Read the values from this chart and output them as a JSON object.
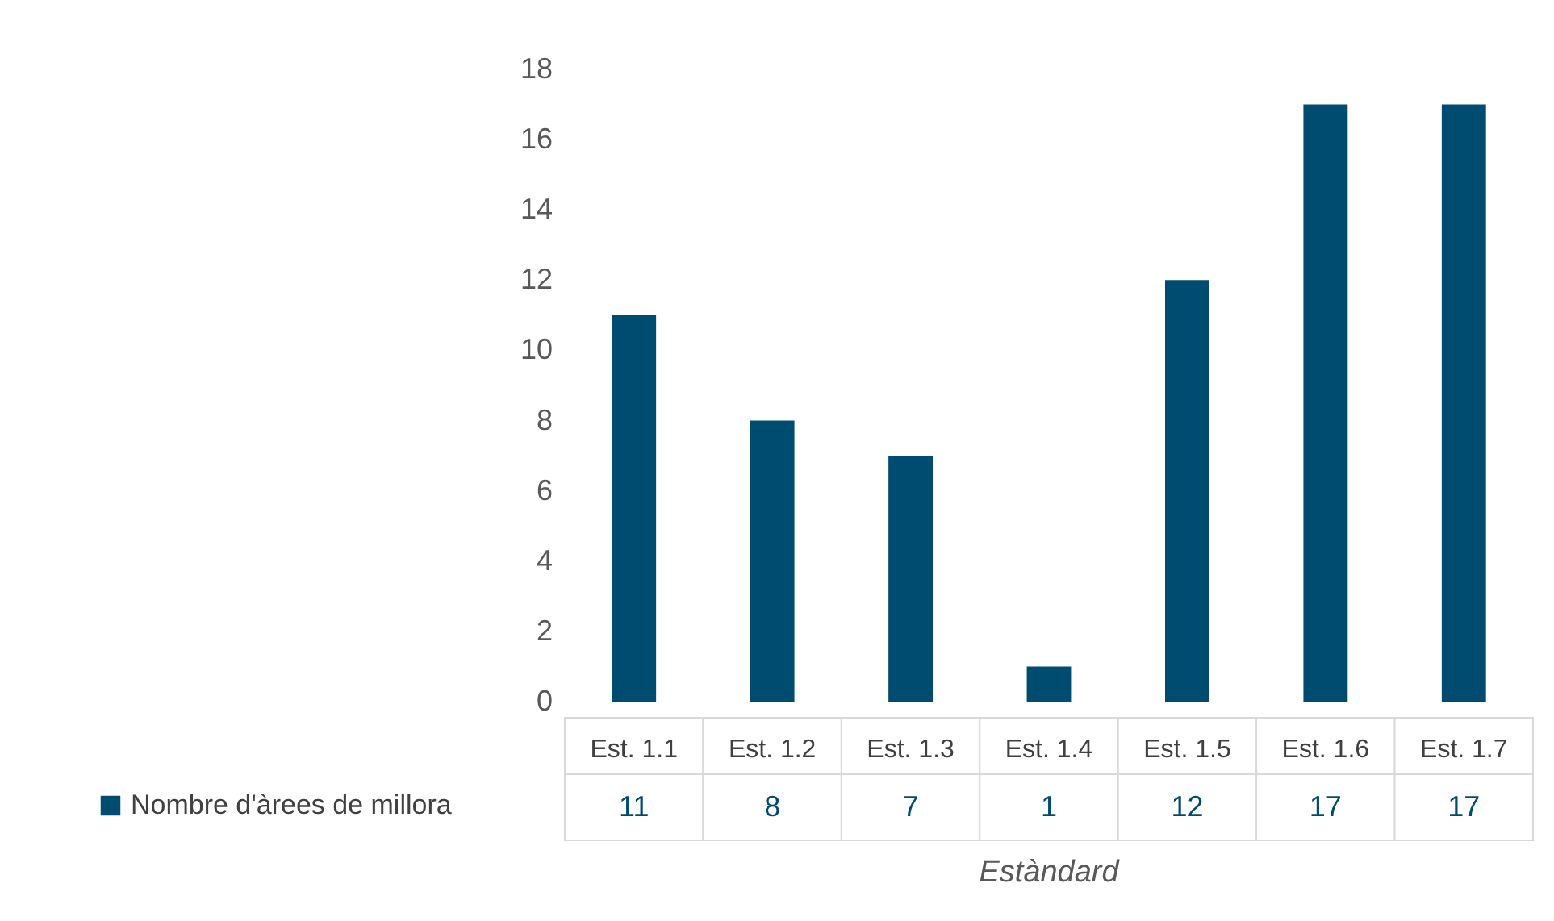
{
  "chart_data": {
    "type": "bar",
    "xlabel": "Estàndard",
    "categories": [
      "Est. 1.1",
      "Est. 1.2",
      "Est. 1.3",
      "Est. 1.4",
      "Est. 1.5",
      "Est. 1.6",
      "Est. 1.7"
    ],
    "series": [
      {
        "name": "Nombre d'àrees de millora",
        "color": "#004c70",
        "values": [
          11,
          8,
          7,
          1,
          12,
          17,
          17
        ]
      }
    ],
    "ylim": [
      0,
      18
    ],
    "yticks": [
      0,
      2,
      4,
      6,
      8,
      10,
      12,
      14,
      16,
      18
    ],
    "grid": false,
    "legend": "bottom",
    "data_labels": true
  }
}
